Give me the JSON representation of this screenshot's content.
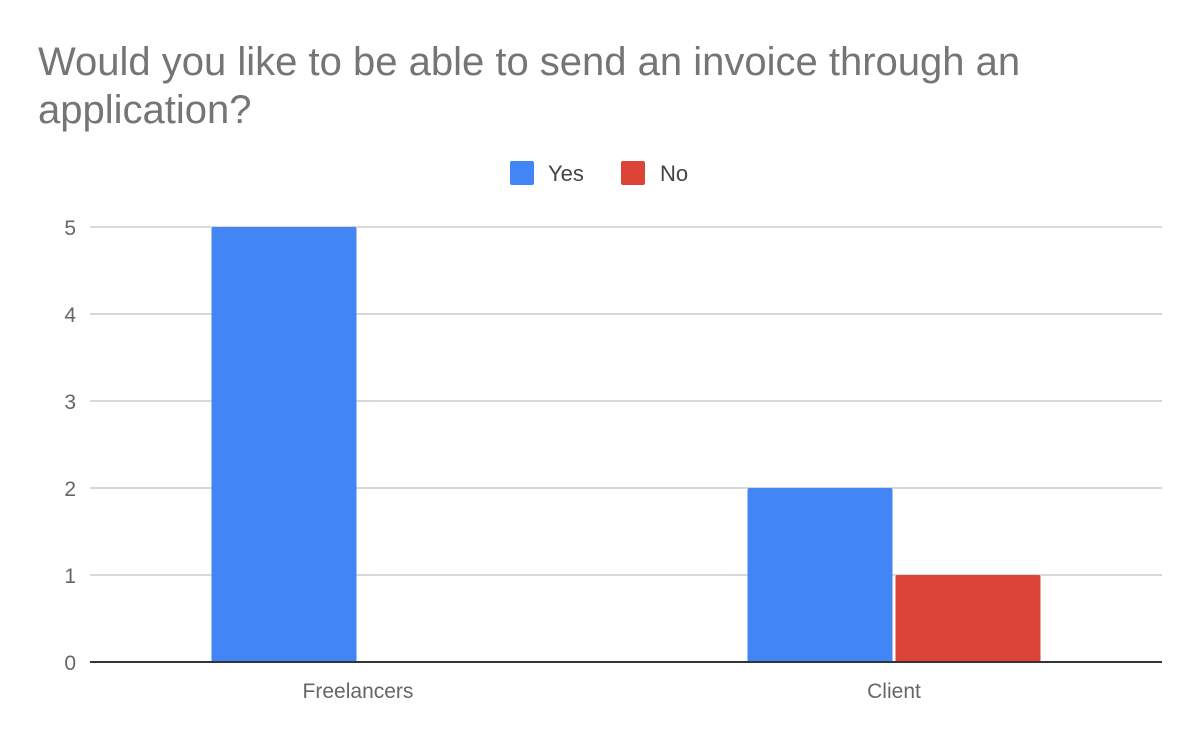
{
  "chart_data": {
    "type": "bar",
    "title": "Would you like to be able to send an invoice through an application?",
    "xlabel": "",
    "ylabel": "",
    "categories": [
      "Freelancers",
      "Client"
    ],
    "series": [
      {
        "name": "Yes",
        "values": [
          5,
          2
        ],
        "color": "#4285f4"
      },
      {
        "name": "No",
        "values": [
          0,
          1
        ],
        "color": "#db4437"
      }
    ],
    "ylim": [
      0,
      5
    ],
    "yticks": [
      "0",
      "1",
      "2",
      "3",
      "4",
      "5"
    ],
    "grid": true,
    "legend_position": "top-center"
  }
}
